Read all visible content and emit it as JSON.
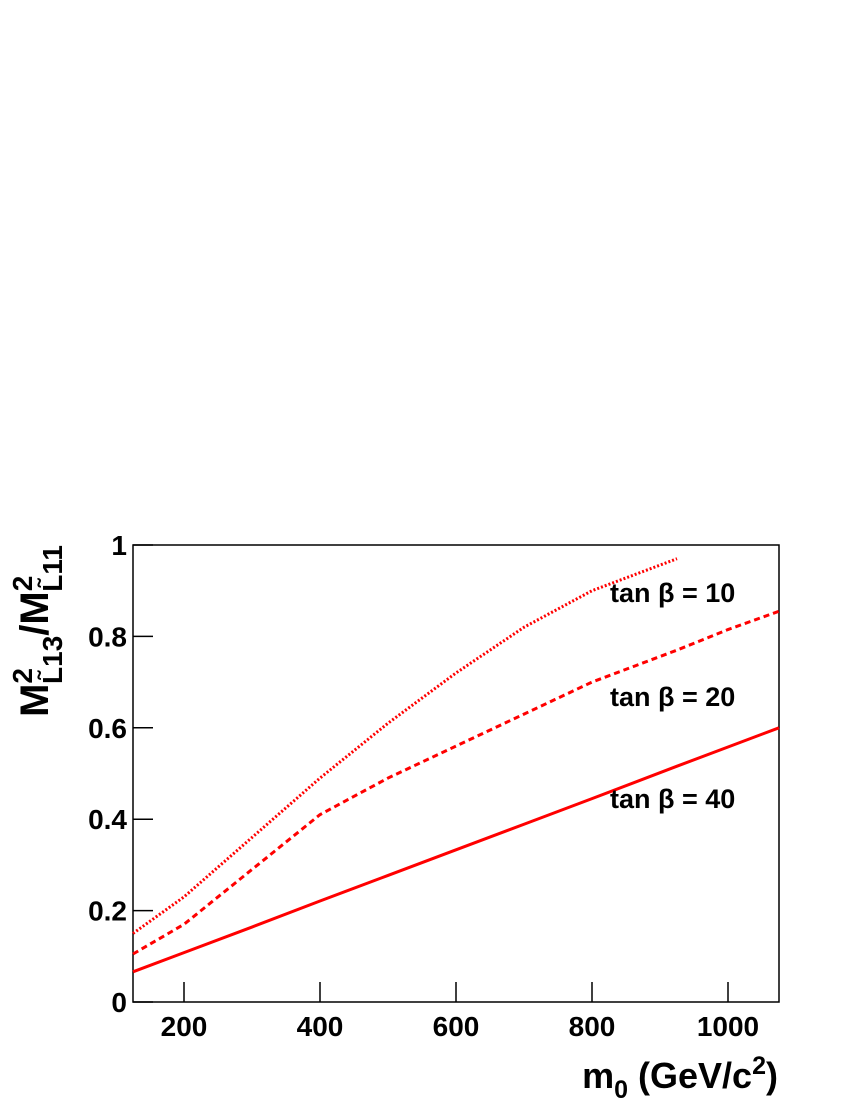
{
  "chart_data": {
    "type": "line",
    "xlabel": {
      "main": "m",
      "sub": "0",
      "unit": " (GeV/c",
      "sup": "2",
      "close": ")"
    },
    "ylabel": {
      "m1": "M",
      "sup1": "2",
      "sub1": "L̃13",
      "slash": "/",
      "m2": "M",
      "sup2": "2",
      "sub2": "L̃11"
    },
    "x": [
      125,
      200,
      300,
      400,
      500,
      600,
      700,
      800,
      925,
      1000,
      1075
    ],
    "series": [
      {
        "name": "tan β = 10",
        "color": "#ff0000",
        "style": "dotted",
        "values": [
          0.15,
          0.23,
          0.36,
          0.49,
          0.61,
          0.72,
          0.82,
          0.9,
          0.97,
          null,
          null
        ]
      },
      {
        "name": "tan β = 20",
        "color": "#ff0000",
        "style": "dashed",
        "values": [
          0.105,
          0.17,
          0.29,
          0.41,
          0.49,
          0.56,
          0.63,
          0.7,
          0.77,
          0.815,
          0.855
        ]
      },
      {
        "name": "tan β = 40",
        "color": "#ff0000",
        "style": "solid",
        "values": [
          0.066,
          0.108,
          0.164,
          0.221,
          0.277,
          0.333,
          0.389,
          0.445,
          0.516,
          0.558,
          0.6
        ]
      }
    ],
    "xlim": [
      125,
      1075
    ],
    "xticks": [
      200,
      400,
      600,
      800,
      1000
    ],
    "ylim": [
      0,
      1
    ],
    "yticks": [
      0,
      0.2,
      0.4,
      0.6,
      0.8,
      1
    ]
  }
}
